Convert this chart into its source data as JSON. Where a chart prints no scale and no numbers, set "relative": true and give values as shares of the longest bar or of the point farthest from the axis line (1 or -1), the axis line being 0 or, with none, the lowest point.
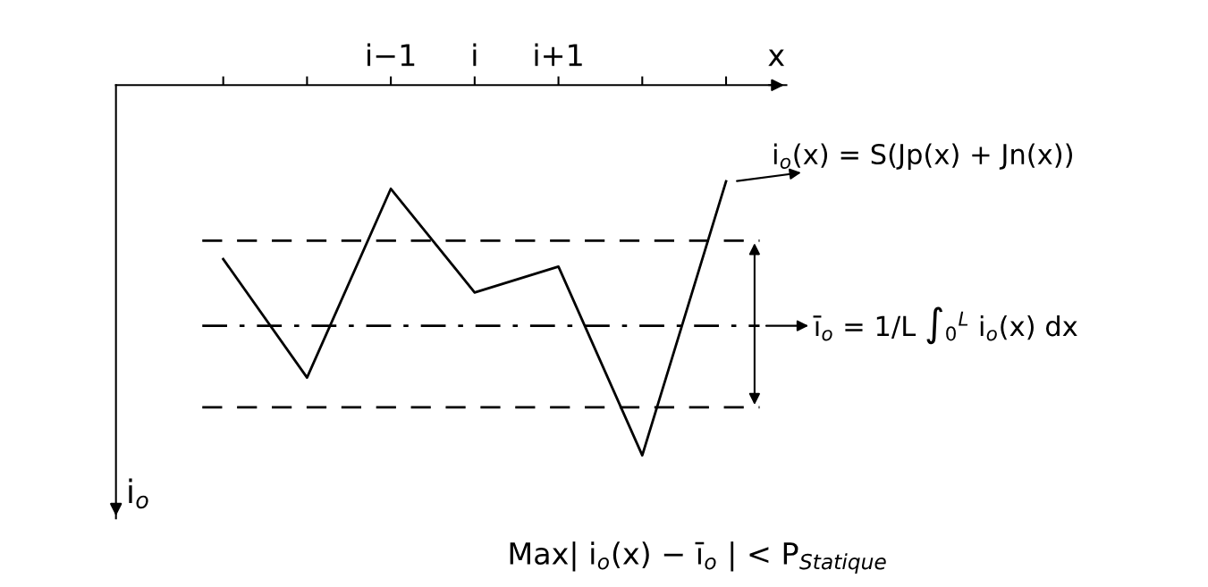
{
  "chart_data": {
    "type": "line",
    "relative": true,
    "xlabel": "x",
    "ylabel": "i$_{o}$",
    "categories": [
      null,
      null,
      "i−1",
      "i",
      "i+1",
      null,
      null
    ],
    "series": [
      {
        "color": "#000000",
        "values": [
          -0.47,
          -0.79,
          -0.28,
          -0.56,
          -0.49,
          -1.0,
          -0.26
        ]
      }
    ],
    "ref_lines": [
      {
        "axis": "y",
        "value": -0.42,
        "line_style": "dashed",
        "color": "#000000"
      },
      {
        "axis": "y",
        "value": -0.65,
        "line_style": "dashdot",
        "color": "#000000"
      },
      {
        "axis": "y",
        "value": -0.87,
        "line_style": "dashed",
        "color": "#000000"
      }
    ],
    "annotations": [
      "i$_{o}$(x) = S(Jp(x) + Jn(x))",
      "ī$_{o}$ = 1/L ∫$_{0}$$^{L}$ i$_{o}$(x) dx",
      "Max| i$_{o}$(x) − ī$_{o}$ | < P$_{Statique}$"
    ],
    "grid": false,
    "legend": false,
    "marker": "none",
    "line_style": "solid"
  }
}
